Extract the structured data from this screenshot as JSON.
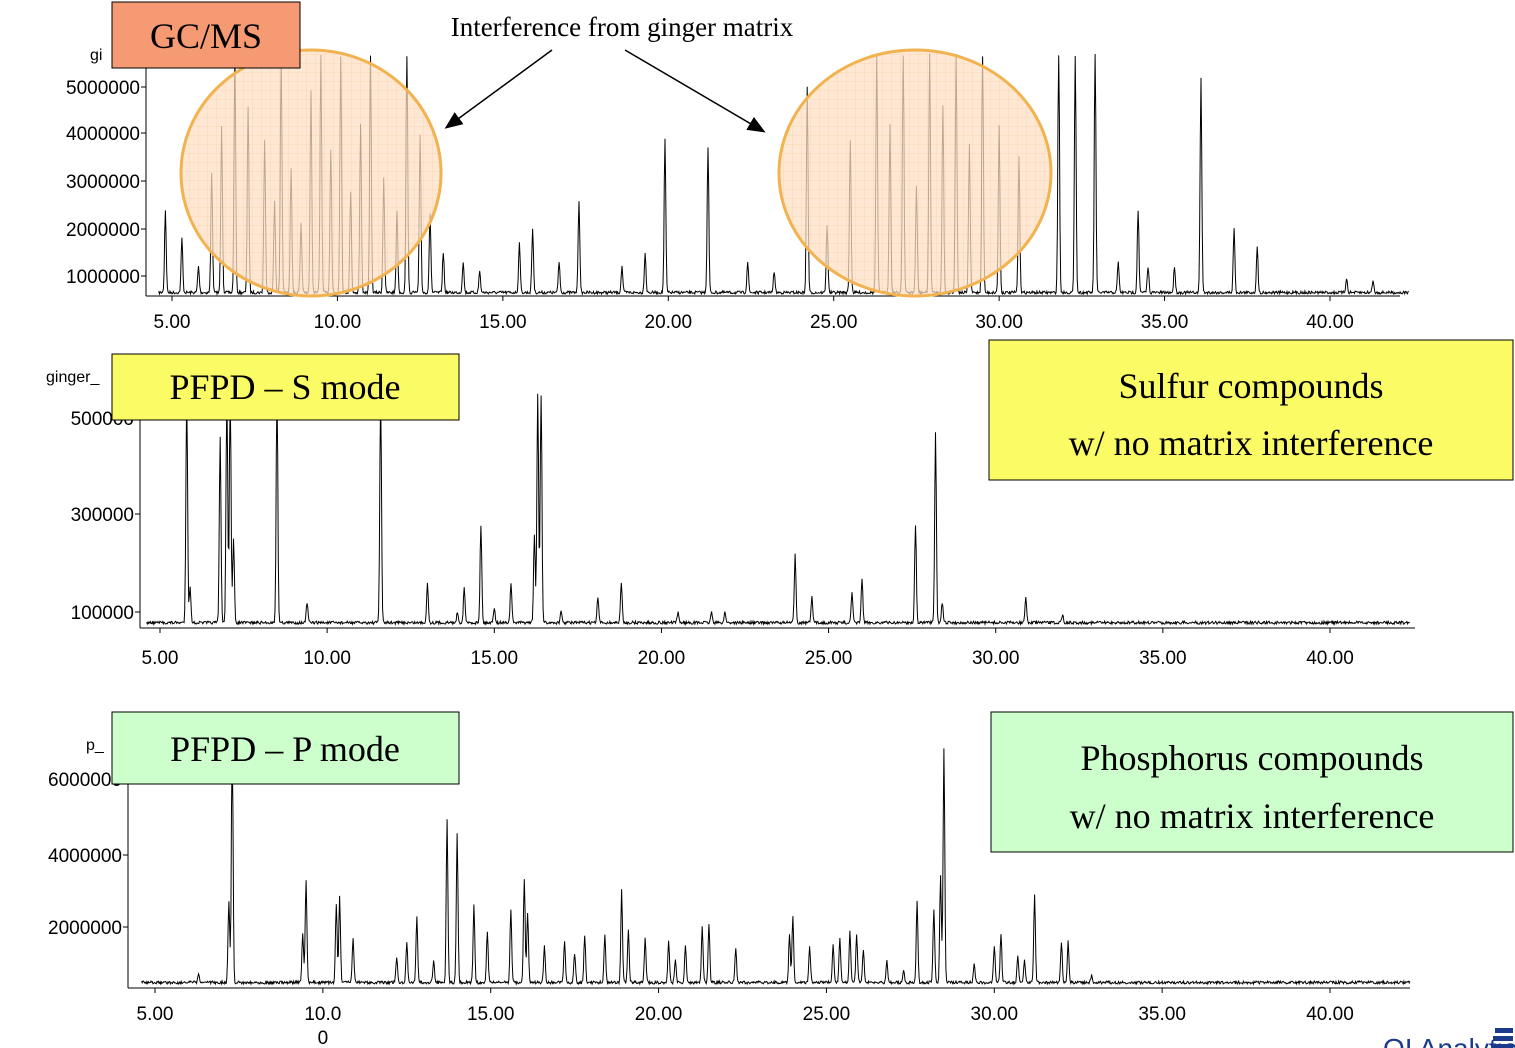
{
  "annotation": "Interference from ginger matrix",
  "logo_text": "OI Analytical",
  "chart_data": [
    {
      "type": "line",
      "label_box": "GC/MS",
      "label_color": "#f59a72",
      "trace_id": "gi",
      "xlim": [
        4.5,
        42.5
      ],
      "xticks": [
        "5.00",
        "10.00",
        "15.00",
        "20.00",
        "25.00",
        "30.00",
        "35.00",
        "40.00"
      ],
      "yticks": [
        "1000000",
        "2000000",
        "3000000",
        "4000000",
        "5000000"
      ],
      "ylim": [
        600000,
        5800000
      ],
      "baseline": 650000,
      "regions_of_interference": [
        [
          4.8,
          12.9
        ],
        [
          23.5,
          31.8
        ]
      ],
      "peaks": [
        [
          4.8,
          2400000
        ],
        [
          5.3,
          1800000
        ],
        [
          5.8,
          1200000
        ],
        [
          6.2,
          3200000
        ],
        [
          6.5,
          4200000
        ],
        [
          6.9,
          5800000
        ],
        [
          7.3,
          4600000
        ],
        [
          7.8,
          3900000
        ],
        [
          8.1,
          2600000
        ],
        [
          8.3,
          5800000
        ],
        [
          8.6,
          3300000
        ],
        [
          8.9,
          2100000
        ],
        [
          9.2,
          4900000
        ],
        [
          9.5,
          5800000
        ],
        [
          9.8,
          3700000
        ],
        [
          10.1,
          5800000
        ],
        [
          10.4,
          2800000
        ],
        [
          10.7,
          4200000
        ],
        [
          11.0,
          5800000
        ],
        [
          11.4,
          3100000
        ],
        [
          11.8,
          2400000
        ],
        [
          12.1,
          5800000
        ],
        [
          12.5,
          4000000
        ],
        [
          12.8,
          2300000
        ],
        [
          13.2,
          1500000
        ],
        [
          13.8,
          1300000
        ],
        [
          14.3,
          1100000
        ],
        [
          15.5,
          1700000
        ],
        [
          15.9,
          2000000
        ],
        [
          16.7,
          1300000
        ],
        [
          17.3,
          2600000
        ],
        [
          18.6,
          1200000
        ],
        [
          19.3,
          1500000
        ],
        [
          19.9,
          3900000
        ],
        [
          21.2,
          3700000
        ],
        [
          22.4,
          1300000
        ],
        [
          23.2,
          1100000
        ],
        [
          24.2,
          5000000
        ],
        [
          24.8,
          2100000
        ],
        [
          25.5,
          3900000
        ],
        [
          26.3,
          5800000
        ],
        [
          26.7,
          4200000
        ],
        [
          27.1,
          5800000
        ],
        [
          27.5,
          2900000
        ],
        [
          27.9,
          5800000
        ],
        [
          28.3,
          4600000
        ],
        [
          28.7,
          5800000
        ],
        [
          29.1,
          3800000
        ],
        [
          29.5,
          5800000
        ],
        [
          30.0,
          4200000
        ],
        [
          30.6,
          3500000
        ],
        [
          31.8,
          5800000
        ],
        [
          32.3,
          5800000
        ],
        [
          32.9,
          5800000
        ],
        [
          33.6,
          1300000
        ],
        [
          34.2,
          2400000
        ],
        [
          34.5,
          1200000
        ],
        [
          35.3,
          1200000
        ],
        [
          36.1,
          5200000
        ],
        [
          37.1,
          2000000
        ],
        [
          37.8,
          1600000
        ],
        [
          40.5,
          950000
        ],
        [
          41.3,
          900000
        ]
      ]
    },
    {
      "type": "line",
      "label_box": "PFPD – S mode",
      "label_color": "#fbfb66",
      "trace_id": "ginger_",
      "note_box": [
        "Sulfur compounds",
        "w/ no matrix interference"
      ],
      "xlim": [
        4.5,
        42.5
      ],
      "xticks": [
        "5.00",
        "10.00",
        "15.00",
        "20.00",
        "25.00",
        "30.00",
        "35.00",
        "40.00"
      ],
      "yticks": [
        "100000",
        "300000",
        "500000"
      ],
      "ylim": [
        70000,
        560000
      ],
      "baseline": 78000,
      "peaks": [
        [
          5.8,
          560000
        ],
        [
          5.9,
          150000
        ],
        [
          6.8,
          460000
        ],
        [
          7.0,
          560000
        ],
        [
          7.2,
          250000
        ],
        [
          7.1,
          560000
        ],
        [
          8.5,
          560000
        ],
        [
          9.4,
          120000
        ],
        [
          11.6,
          560000
        ],
        [
          13.0,
          160000
        ],
        [
          13.9,
          100000
        ],
        [
          14.1,
          150000
        ],
        [
          14.6,
          280000
        ],
        [
          15.0,
          110000
        ],
        [
          15.5,
          160000
        ],
        [
          16.2,
          260000
        ],
        [
          16.3,
          560000
        ],
        [
          16.4,
          560000
        ],
        [
          17.0,
          100000
        ],
        [
          18.1,
          130000
        ],
        [
          18.8,
          160000
        ],
        [
          20.5,
          100000
        ],
        [
          21.5,
          100000
        ],
        [
          21.9,
          100000
        ],
        [
          24.0,
          220000
        ],
        [
          24.5,
          130000
        ],
        [
          25.7,
          140000
        ],
        [
          26.0,
          170000
        ],
        [
          27.6,
          280000
        ],
        [
          28.2,
          470000
        ],
        [
          28.4,
          120000
        ],
        [
          30.9,
          130000
        ],
        [
          32.0,
          95000
        ]
      ]
    },
    {
      "type": "line",
      "label_box": "PFPD – P mode",
      "label_color": "#ccffcc",
      "trace_id": "p_",
      "note_box": [
        "Phosphorus compounds",
        "w/ no matrix interference"
      ],
      "xlim": [
        4.5,
        42.5
      ],
      "xticks": [
        "5.00",
        "10.0\n0",
        "15.00",
        "20.00",
        "25.00",
        "30.00",
        "35.00",
        "40.00"
      ],
      "yticks": [
        "2000000",
        "4000000",
        "6000000"
      ],
      "ylim": [
        300000,
        7000000
      ],
      "baseline": 500000,
      "peaks": [
        [
          6.3,
          700000
        ],
        [
          7.2,
          2700000
        ],
        [
          7.3,
          7000000
        ],
        [
          9.4,
          1800000
        ],
        [
          9.5,
          3300000
        ],
        [
          10.4,
          2600000
        ],
        [
          10.5,
          2800000
        ],
        [
          10.9,
          1700000
        ],
        [
          12.2,
          1200000
        ],
        [
          12.5,
          1600000
        ],
        [
          12.8,
          2300000
        ],
        [
          13.3,
          1100000
        ],
        [
          13.7,
          4900000
        ],
        [
          14.0,
          4500000
        ],
        [
          14.5,
          2600000
        ],
        [
          14.9,
          1900000
        ],
        [
          15.6,
          2500000
        ],
        [
          16.0,
          3300000
        ],
        [
          16.1,
          2400000
        ],
        [
          16.6,
          1500000
        ],
        [
          17.2,
          1600000
        ],
        [
          17.5,
          1300000
        ],
        [
          17.8,
          1800000
        ],
        [
          18.4,
          1800000
        ],
        [
          18.9,
          3000000
        ],
        [
          19.1,
          1900000
        ],
        [
          19.6,
          1700000
        ],
        [
          20.3,
          1600000
        ],
        [
          20.5,
          1100000
        ],
        [
          20.8,
          1500000
        ],
        [
          21.3,
          2000000
        ],
        [
          21.5,
          2100000
        ],
        [
          22.3,
          1400000
        ],
        [
          23.9,
          1800000
        ],
        [
          24.0,
          2300000
        ],
        [
          24.5,
          1500000
        ],
        [
          25.2,
          1500000
        ],
        [
          25.4,
          1700000
        ],
        [
          25.7,
          1900000
        ],
        [
          25.9,
          1800000
        ],
        [
          26.1,
          1400000
        ],
        [
          26.8,
          1100000
        ],
        [
          27.3,
          800000
        ],
        [
          27.7,
          2700000
        ],
        [
          28.2,
          2500000
        ],
        [
          28.4,
          3400000
        ],
        [
          28.5,
          6800000
        ],
        [
          29.4,
          1000000
        ],
        [
          30.0,
          1500000
        ],
        [
          30.2,
          1800000
        ],
        [
          30.7,
          1200000
        ],
        [
          30.9,
          1100000
        ],
        [
          31.2,
          2900000
        ],
        [
          32.0,
          1600000
        ],
        [
          32.2,
          1600000
        ],
        [
          32.9,
          700000
        ]
      ]
    }
  ]
}
